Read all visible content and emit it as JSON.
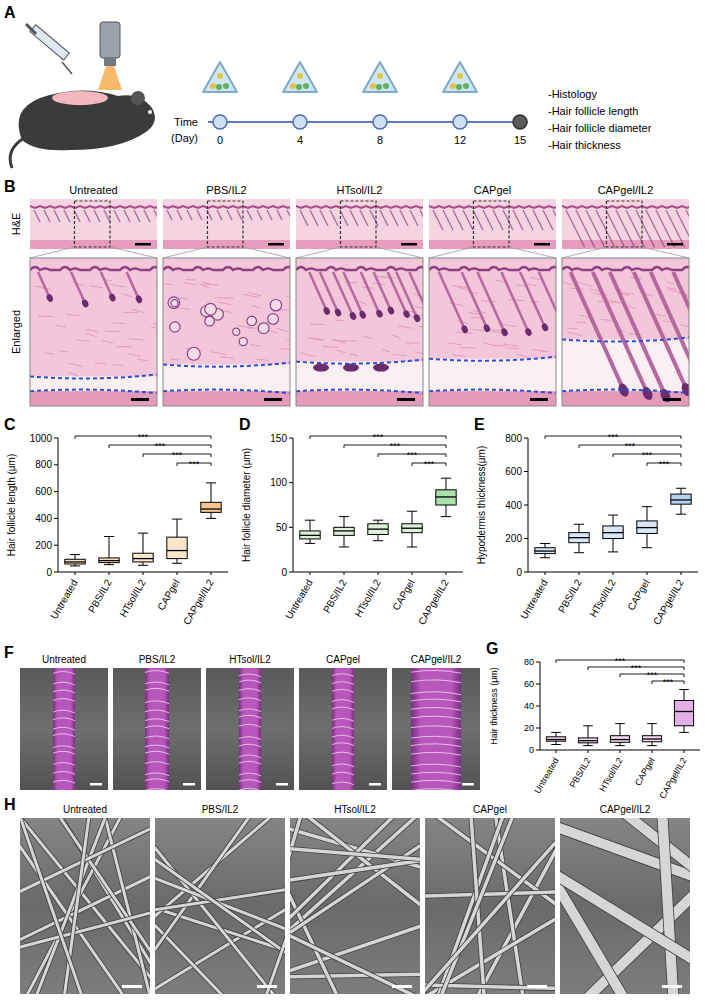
{
  "panel_letters": [
    "A",
    "B",
    "C",
    "D",
    "E",
    "F",
    "G",
    "H"
  ],
  "panel_a": {
    "time_label": "Time",
    "unit_label": "(Day)",
    "days": [
      0,
      4,
      8,
      12,
      15
    ],
    "injection_days": [
      0,
      4,
      8,
      12
    ],
    "endpoints": [
      "-Histology",
      "-Hair follicle length",
      "-Hair follicle diameter",
      "-Hair thickness"
    ]
  },
  "panel_b": {
    "row_labels": [
      "H&E",
      "Enlarged"
    ],
    "groups": [
      "Untreated",
      "PBS/IL2",
      "HTsol/IL2",
      "CAPgel",
      "CAPgel/IL2"
    ]
  },
  "panel_f": {
    "groups": [
      "Untreated",
      "PBS/IL2",
      "HTsol/IL2",
      "CAPgel",
      "CAPgel/IL2"
    ]
  },
  "panel_h": {
    "groups": [
      "Untreated",
      "PBS/IL2",
      "HTsol/IL2",
      "CAPgel",
      "CAPgel/IL2"
    ]
  },
  "chart_data": [
    {
      "type": "box",
      "y_label": "Hair follicle length (μm)",
      "categories": [
        "Untreated",
        "PBS/IL2",
        "HTsol/IL2",
        "CAPgel",
        "CAPgel/IL2"
      ],
      "min": [
        45,
        55,
        50,
        65,
        400
      ],
      "q1": [
        60,
        70,
        75,
        100,
        445
      ],
      "median": [
        75,
        85,
        100,
        160,
        470
      ],
      "q3": [
        95,
        105,
        140,
        260,
        520
      ],
      "max": [
        130,
        265,
        290,
        395,
        665
      ],
      "colors": [
        "#fbe6cb",
        "#fbe6cb",
        "#fbe6cb",
        "#fbe6cb",
        "#f7c793"
      ],
      "ylim": [
        0,
        1000
      ],
      "yticks": [
        0,
        200,
        400,
        600,
        800,
        1000
      ],
      "grid": false,
      "annotations": [
        {
          "text": "***",
          "between": [
            "Untreated",
            "CAPgel/IL2"
          ]
        },
        {
          "text": "***",
          "between": [
            "PBS/IL2",
            "CAPgel/IL2"
          ]
        },
        {
          "text": "***",
          "between": [
            "HTsol/IL2",
            "CAPgel/IL2"
          ]
        },
        {
          "text": "***",
          "between": [
            "CAPgel",
            "CAPgel/IL2"
          ]
        }
      ]
    },
    {
      "type": "box",
      "y_label": "Hair follicle diameter (μm)",
      "categories": [
        "Untreated",
        "PBS/IL2",
        "HTsol/IL2",
        "CAPgel",
        "CAPgel/IL2"
      ],
      "min": [
        32,
        28,
        35,
        28,
        62
      ],
      "q1": [
        37,
        41,
        42,
        44,
        75
      ],
      "median": [
        41,
        46,
        48,
        49,
        84
      ],
      "q3": [
        46,
        50,
        54,
        54,
        92
      ],
      "max": [
        58,
        62,
        58,
        68,
        105
      ],
      "colors": [
        "#dcf1d8",
        "#dcf1d8",
        "#dcf1d8",
        "#dcf1d8",
        "#a9e2a6"
      ],
      "ylim": [
        0,
        150
      ],
      "yticks": [
        0,
        50,
        100,
        150
      ],
      "grid": false,
      "annotations": [
        {
          "text": "***",
          "between": [
            "Untreated",
            "CAPgel/IL2"
          ]
        },
        {
          "text": "***",
          "between": [
            "PBS/IL2",
            "CAPgel/IL2"
          ]
        },
        {
          "text": "***",
          "between": [
            "HTsol/IL2",
            "CAPgel/IL2"
          ]
        },
        {
          "text": "***",
          "between": [
            "CAPgel",
            "CAPgel/IL2"
          ]
        }
      ]
    },
    {
      "type": "box",
      "y_label": "Hypodermis thickness(μm)",
      "categories": [
        "Untreated",
        "PBS/IL2",
        "HTsol/IL2",
        "CAPgel",
        "CAPgel/IL2"
      ],
      "min": [
        85,
        115,
        120,
        145,
        345
      ],
      "q1": [
        110,
        175,
        200,
        230,
        405
      ],
      "median": [
        125,
        205,
        235,
        265,
        430
      ],
      "q3": [
        145,
        235,
        275,
        305,
        465
      ],
      "max": [
        170,
        285,
        340,
        390,
        500
      ],
      "colors": [
        "#d8e7f6",
        "#d8e7f6",
        "#d8e7f6",
        "#d8e7f6",
        "#b7d1ee"
      ],
      "ylim": [
        0,
        800
      ],
      "yticks": [
        0,
        200,
        400,
        600,
        800
      ],
      "grid": false,
      "annotations": [
        {
          "text": "***",
          "between": [
            "Untreated",
            "CAPgel/IL2"
          ]
        },
        {
          "text": "***",
          "between": [
            "PBS/IL2",
            "CAPgel/IL2"
          ]
        },
        {
          "text": "***",
          "between": [
            "HTsol/IL2",
            "CAPgel/IL2"
          ]
        },
        {
          "text": "***",
          "between": [
            "CAPgel",
            "CAPgel/IL2"
          ]
        }
      ]
    },
    {
      "type": "box",
      "y_label": "Hair thickness (μm)",
      "categories": [
        "Untreated",
        "PBS/IL2",
        "HTsol/IL2",
        "CAPgel",
        "CAPgel/IL2"
      ],
      "min": [
        5,
        4,
        4,
        4,
        16
      ],
      "q1": [
        8,
        6.5,
        7,
        7.5,
        22
      ],
      "median": [
        9.5,
        8.5,
        9.5,
        10,
        35
      ],
      "q3": [
        12,
        11,
        13,
        13,
        45
      ],
      "max": [
        16,
        22,
        24,
        24,
        55
      ],
      "colors": [
        "#f1dcf1",
        "#f1dcf1",
        "#f1dcf1",
        "#f1dcf1",
        "#e4afe6"
      ],
      "ylim": [
        0,
        80
      ],
      "yticks": [
        0,
        20,
        40,
        60,
        80
      ],
      "grid": false,
      "annotations": [
        {
          "text": "***",
          "between": [
            "Untreated",
            "CAPgel/IL2"
          ]
        },
        {
          "text": "***",
          "between": [
            "PBS/IL2",
            "CAPgel/IL2"
          ]
        },
        {
          "text": "***",
          "between": [
            "HTsol/IL2",
            "CAPgel/IL2"
          ]
        },
        {
          "text": "***",
          "between": [
            "CAPgel",
            "CAPgel/IL2"
          ]
        }
      ]
    }
  ]
}
